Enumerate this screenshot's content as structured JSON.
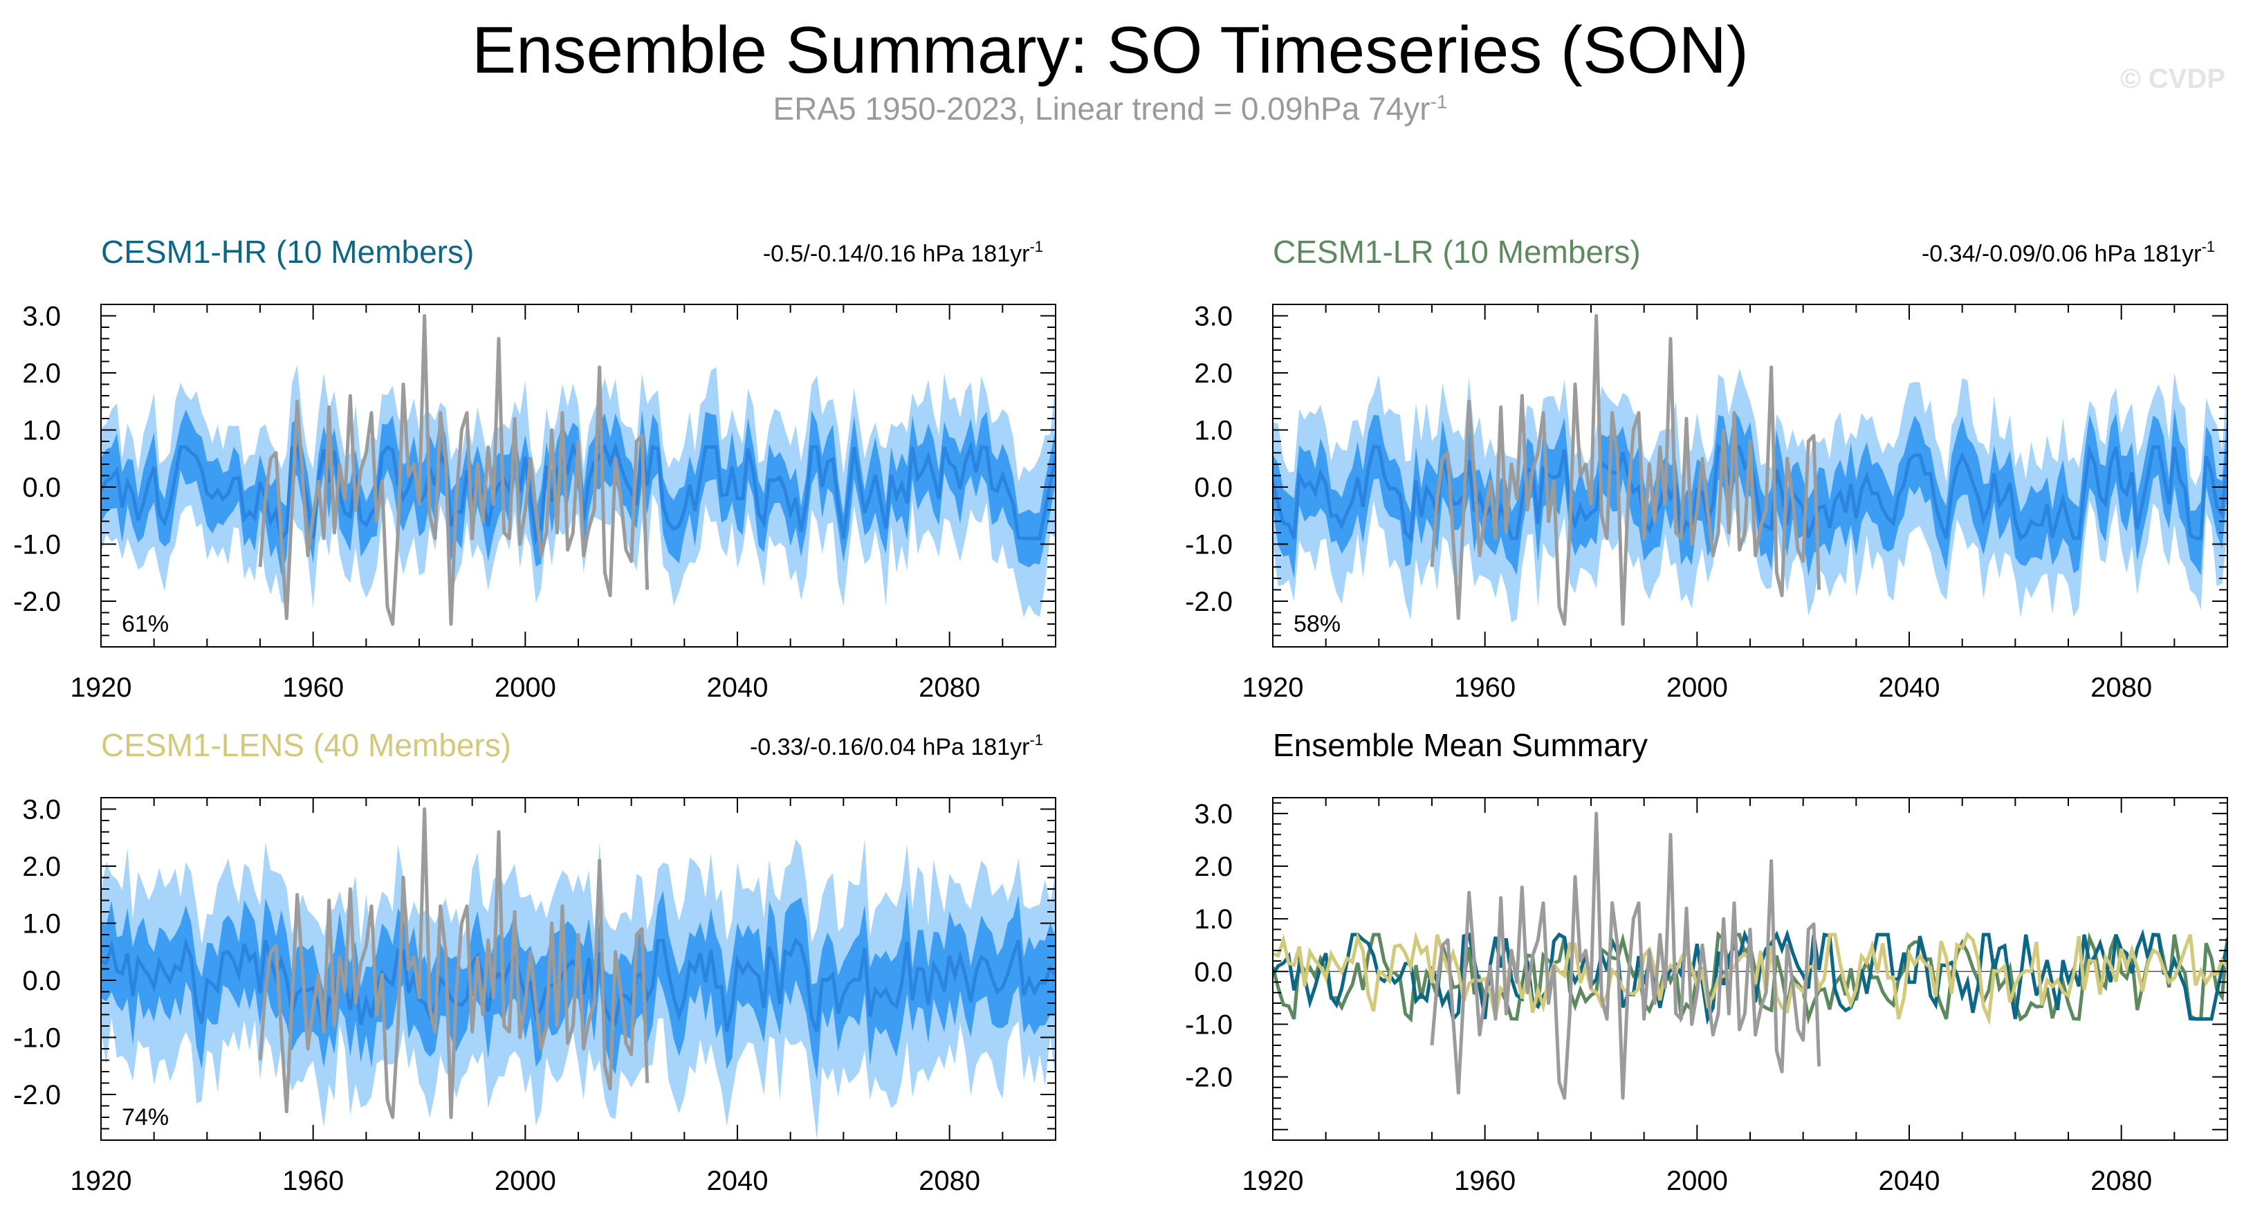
{
  "title": "Ensemble Summary: SO Timeseries (SON)",
  "subtitle": {
    "text": "ERA5 1950-2023, Linear trend = 0.09hPa 74yr",
    "superscript": "-1"
  },
  "watermark": "© CVDP",
  "colors": {
    "obs": "#9b9b9b",
    "outer_band": "#a6d4fb",
    "inner_band": "#3d9df2",
    "ensemble_mean": "#2b84e0",
    "cesm1_hr": "#0c6786",
    "cesm1_lr": "#5c8a5e",
    "cesm1_lens": "#d3c97a",
    "axes": "#000000",
    "grid_zero": "#555555"
  },
  "axes": {
    "x_ticks": [
      "1920",
      "1960",
      "2000",
      "2040",
      "2080"
    ],
    "x_tick_values": [
      1920,
      1960,
      2000,
      2040,
      2080
    ],
    "xlim": [
      1920,
      2100
    ],
    "y_ticks": [
      "3.0",
      "2.0",
      "1.0",
      "0.0",
      "-1.0",
      "-2.0"
    ],
    "y_tick_values": [
      3,
      2,
      1,
      0,
      -1,
      -2
    ],
    "ylim_default": [
      -2.8,
      3.2
    ],
    "ylim_summary": [
      -3.2,
      3.3
    ]
  },
  "panels": [
    {
      "id": "hr",
      "title": "CESM1-HR (10 Members)",
      "title_color": "#0c6786",
      "trend_text": "-0.5/-0.14/0.16 hPa 181yr",
      "trend_sup": "-1",
      "percent": "61%",
      "seed": 11,
      "spread_inner": 0.55,
      "spread_outer": 1.05
    },
    {
      "id": "lr",
      "title": "CESM1-LR (10 Members)",
      "title_color": "#5c8a5e",
      "trend_text": "-0.34/-0.09/0.06 hPa 181yr",
      "trend_sup": "-1",
      "percent": "58%",
      "seed": 23,
      "spread_inner": 0.6,
      "spread_outer": 1.1
    },
    {
      "id": "lens",
      "title": "CESM1-LENS (40 Members)",
      "title_color": "#d3c97a",
      "trend_text": "-0.33/-0.16/0.04 hPa 181yr",
      "trend_sup": "-1",
      "percent": "74%",
      "seed": 37,
      "spread_inner": 0.75,
      "spread_outer": 1.45
    },
    {
      "id": "summary",
      "title": "Ensemble Mean Summary",
      "title_color": "#000000",
      "trend_text": "",
      "trend_sup": "",
      "percent": ""
    }
  ],
  "chart_data": {
    "type": "line",
    "obs_series": {
      "x": [
        1950,
        1951,
        1952,
        1953,
        1954,
        1955,
        1956,
        1957,
        1958,
        1959,
        1960,
        1961,
        1962,
        1963,
        1964,
        1965,
        1966,
        1967,
        1968,
        1969,
        1970,
        1971,
        1972,
        1973,
        1974,
        1975,
        1976,
        1977,
        1978,
        1979,
        1980,
        1981,
        1982,
        1983,
        1984,
        1985,
        1986,
        1987,
        1988,
        1989,
        1990,
        1991,
        1992,
        1993,
        1994,
        1995,
        1996,
        1997,
        1998,
        1999,
        2000,
        2001,
        2002,
        2003,
        2004,
        2005,
        2006,
        2007,
        2008,
        2009,
        2010,
        2011,
        2012,
        2013,
        2014,
        2015,
        2016,
        2017,
        2018,
        2019,
        2020,
        2021,
        2022,
        2023
      ],
      "y": [
        -1.4,
        -0.2,
        0.5,
        0.6,
        -0.9,
        -2.3,
        -0.4,
        1.5,
        0.2,
        -1.2,
        -0.5,
        0.1,
        -0.9,
        1.4,
        -0.8,
        0.4,
        -0.2,
        1.6,
        -0.4,
        0.3,
        0.6,
        1.3,
        -0.6,
        0.1,
        -2.1,
        -2.4,
        -0.8,
        1.8,
        0.2,
        0.4,
        -0.3,
        3.0,
        -0.5,
        -0.9,
        1.3,
        0.5,
        -2.4,
        -0.2,
        1.0,
        1.3,
        -0.9,
        0.4,
        -0.6,
        0.7,
        -0.3,
        2.6,
        -0.8,
        -0.9,
        1.2,
        -1.0,
        -0.4,
        0.5,
        -0.4,
        -1.2,
        -0.8,
        1.0,
        -0.8,
        1.3,
        -1.1,
        -0.8,
        0.8,
        -1.2,
        -0.7,
        -0.4,
        2.1,
        -1.5,
        -1.9,
        0.5,
        -0.2,
        -1.1,
        -1.3,
        0.8,
        0.9,
        -1.8
      ]
    },
    "series": [
      {
        "name": "ERA5",
        "color": "#9b9b9b"
      },
      {
        "name": "CESM1-HR (10 Members)",
        "color": "#0c6786"
      },
      {
        "name": "CESM1-LR (10 Members)",
        "color": "#5c8a5e"
      },
      {
        "name": "CESM1-LENS (40 Members)",
        "color": "#d3c97a"
      }
    ]
  }
}
